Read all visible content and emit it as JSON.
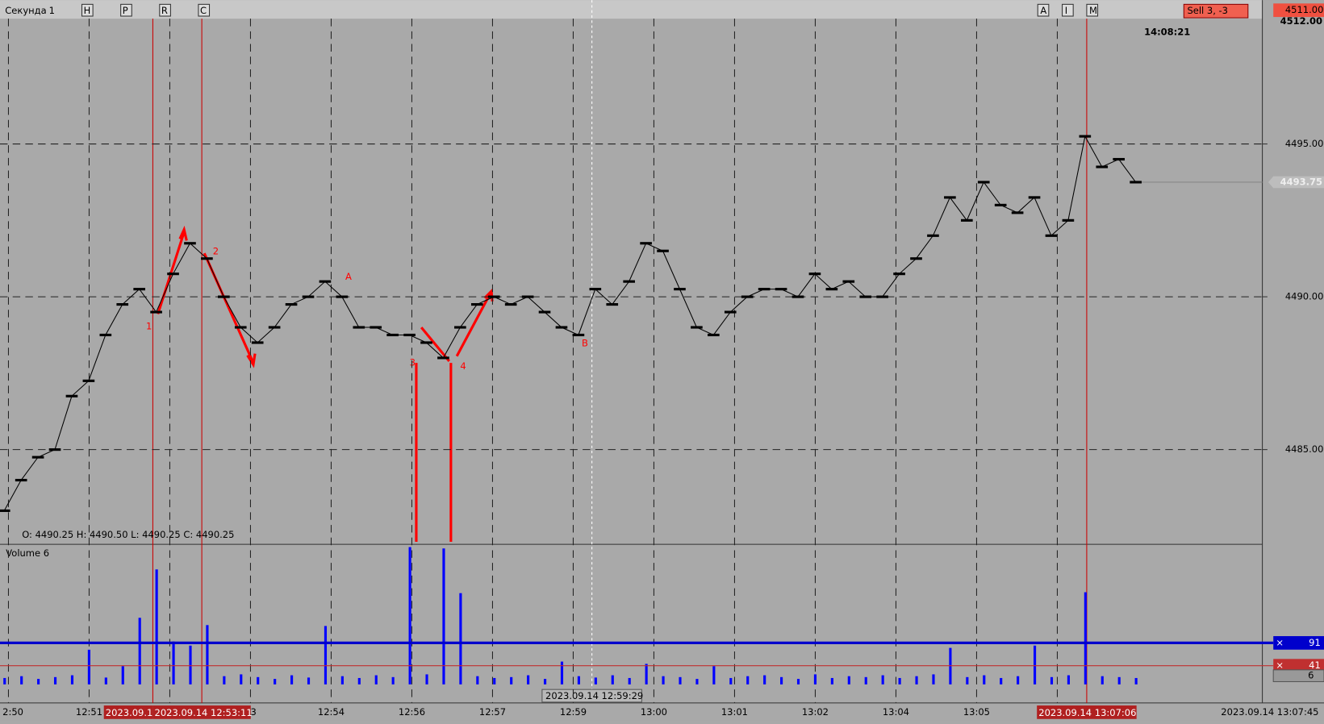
{
  "toolbar": {
    "timeframe": "Секунда",
    "period": "1",
    "left_buttons": [
      "H",
      "P",
      "R",
      "C"
    ],
    "right_buttons": [
      "A",
      "I",
      "M"
    ],
    "order": "Sell  3,  -3",
    "top_prices": [
      "4511.00",
      "4512.00"
    ],
    "clock": "14:08:21"
  },
  "price_panel": {
    "ylim": [
      4481.9,
      4499.1
    ],
    "yticks": [
      {
        "value": 4485,
        "label": "4485.00"
      },
      {
        "value": 4490,
        "label": "4490.00"
      },
      {
        "value": 4495,
        "label": "4495.00"
      }
    ],
    "last_price": 4493.75,
    "ohlc": "O: 4490.25   H: 4490.50   L: 4490.25   C: 4490.25",
    "values": [
      4483.0,
      4484.0,
      4484.75,
      4485.0,
      4486.75,
      4487.25,
      4488.75,
      4489.75,
      4490.25,
      4489.5,
      4490.75,
      4491.75,
      4491.25,
      4490.0,
      4489.0,
      4488.5,
      4489.0,
      4489.75,
      4490.0,
      4490.5,
      4490.0,
      4489.0,
      4489.0,
      4488.75,
      4488.75,
      4488.5,
      4488.0,
      4489.0,
      4489.75,
      4490.0,
      4489.75,
      4490.0,
      4489.5,
      4489.0,
      4488.75,
      4490.25,
      4489.75,
      4490.5,
      4491.75,
      4491.5,
      4490.25,
      4489.0,
      4488.75,
      4489.5,
      4490.0,
      4490.25,
      4490.25,
      4490.0,
      4490.75,
      4490.25,
      4490.5,
      4490.0,
      4490.0,
      4490.75,
      4491.25,
      4492.0,
      4493.25,
      4492.5,
      4493.75,
      4493.0,
      4492.75,
      4493.25,
      4492.0,
      4492.5,
      4495.25,
      4494.25,
      4494.5,
      4493.75
    ],
    "annotations": [
      "1",
      "2",
      "3",
      "4",
      "A",
      "B"
    ]
  },
  "volume_panel": {
    "title": "Volume 6",
    "ylim": [
      0,
      307
    ],
    "color": "#0000ff",
    "current": 6,
    "levels": [
      {
        "value": 91,
        "color": "#0000cc"
      },
      {
        "value": 41,
        "color": "#c03030"
      }
    ],
    "values": [
      14,
      18,
      12,
      16,
      20,
      76,
      15,
      40,
      146,
      252,
      94,
      85,
      130,
      18,
      22,
      16,
      12,
      20,
      15,
      128,
      18,
      14,
      20,
      16,
      301,
      22,
      298,
      200,
      18,
      14,
      16,
      20,
      12,
      50,
      18,
      15,
      20,
      14,
      45,
      18,
      16,
      12,
      40,
      14,
      18,
      20,
      16,
      12,
      22,
      14,
      18,
      16,
      20,
      14,
      18,
      22,
      80,
      16,
      20,
      14,
      18,
      85,
      16,
      20,
      202,
      18,
      16,
      14
    ]
  },
  "time_axis": {
    "labels": [
      "2:50",
      "12:51",
      null,
      "53",
      "12:54",
      "12:56",
      "12:57",
      "12:59",
      "13:00",
      "13:01",
      "13:02",
      "13:04",
      "13:05",
      null
    ],
    "markers": [
      "2023.09.1",
      "2023.09.14 12:53:11",
      "2023.09.14 13:07:06"
    ],
    "cursor": "2023.09.14 12:59:29",
    "end": "2023.09.14 13:07:45"
  }
}
